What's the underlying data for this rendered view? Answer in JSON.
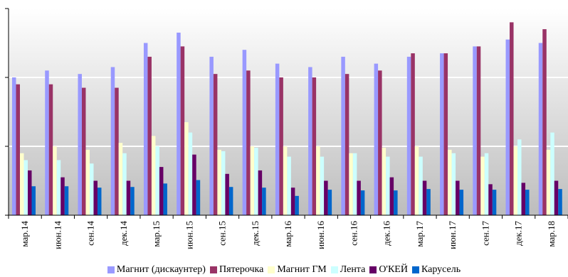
{
  "chart_data": {
    "type": "bar",
    "title": "",
    "xlabel": "",
    "ylabel": "",
    "ylim": [
      0,
      30
    ],
    "y_grid_lines": [
      10,
      20
    ],
    "categories": [
      "мар.14",
      "июн.14",
      "сен.14",
      "дек.14",
      "мар.15",
      "июн.15",
      "сен.15",
      "дек.15",
      "мар.16",
      "июн.16",
      "сен.16",
      "дек.16",
      "мар.17",
      "июн.17",
      "сен.17",
      "дек.17",
      "мар.18"
    ],
    "series": [
      {
        "name": "Магнит (дискаунтер)",
        "color": "#9999ff",
        "values": [
          20,
          21,
          20.5,
          21.5,
          25,
          26.5,
          23,
          24,
          22,
          21.5,
          23,
          22,
          23,
          23.5,
          24.5,
          25.5,
          25
        ]
      },
      {
        "name": "Пятерочка",
        "color": "#993366",
        "values": [
          19,
          19,
          18.5,
          18.5,
          23,
          24.5,
          20.5,
          21,
          20,
          20,
          20.5,
          21,
          23.5,
          23.5,
          24.5,
          28,
          27
        ]
      },
      {
        "name": "Магнит ГМ",
        "color": "#ffffcc",
        "values": [
          9,
          10,
          9.5,
          10.5,
          11.5,
          13.5,
          9.5,
          10,
          10,
          10,
          9,
          9.8,
          10,
          9.5,
          8.5,
          10,
          9.5
        ]
      },
      {
        "name": "Лента",
        "color": "#ccffff",
        "values": [
          8,
          8,
          7.5,
          9,
          10,
          12,
          9.3,
          9.8,
          8.5,
          8.5,
          9,
          8.5,
          8.5,
          9,
          9,
          11,
          12
        ]
      },
      {
        "name": "О'КЕЙ",
        "color": "#660066",
        "values": [
          6.5,
          5.5,
          5,
          5,
          7,
          8.8,
          6,
          6.5,
          4,
          5,
          5,
          5.5,
          5,
          5,
          4.5,
          4.7,
          5
        ]
      },
      {
        "name": "Карусель",
        "color": "#0066cc",
        "values": [
          4.2,
          4.2,
          4,
          4.1,
          4.6,
          5.1,
          4.1,
          4,
          2.8,
          3.7,
          3.6,
          3.6,
          3.8,
          3.7,
          3.7,
          3.7,
          3.8
        ]
      }
    ],
    "legend_position": "bottom",
    "grid": true
  }
}
